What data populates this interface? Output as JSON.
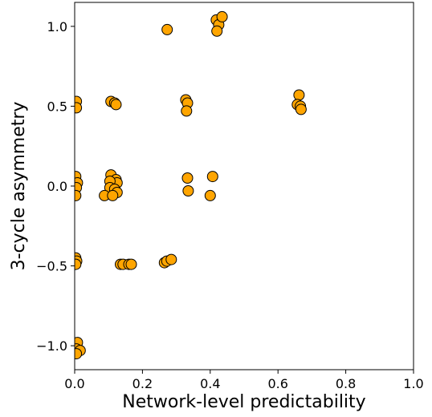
{
  "chart_data": {
    "type": "scatter",
    "title": "",
    "xlabel": "Network-level predictability",
    "ylabel": "3-cycle asymmetry",
    "xlim": [
      0.0,
      1.0
    ],
    "ylim": [
      -1.15,
      1.15
    ],
    "xticks": [
      0.0,
      0.2,
      0.4,
      0.6,
      0.8,
      1.0
    ],
    "xtick_labels": [
      "0.0",
      "0.2",
      "0.4",
      "0.6",
      "0.8",
      "1.0"
    ],
    "yticks": [
      -1.0,
      -0.5,
      0.0,
      0.5,
      1.0
    ],
    "ytick_labels": [
      "−1.0",
      "−0.5",
      "0.0",
      "0.5",
      "1.0"
    ],
    "grid": false,
    "marker_color": "#FFA500",
    "marker_edge_color": "#000000",
    "points": [
      {
        "x": 0.005,
        "y": 0.53
      },
      {
        "x": 0.005,
        "y": 0.49
      },
      {
        "x": 0.003,
        "y": 0.06
      },
      {
        "x": 0.008,
        "y": 0.02
      },
      {
        "x": 0.005,
        "y": -0.01
      },
      {
        "x": 0.003,
        "y": -0.06
      },
      {
        "x": 0.003,
        "y": -0.45
      },
      {
        "x": 0.006,
        "y": -0.47
      },
      {
        "x": 0.003,
        "y": -0.49
      },
      {
        "x": 0.008,
        "y": -0.98
      },
      {
        "x": 0.005,
        "y": -1.02
      },
      {
        "x": 0.016,
        "y": -1.03
      },
      {
        "x": 0.005,
        "y": -1.05
      },
      {
        "x": 0.107,
        "y": 0.53
      },
      {
        "x": 0.118,
        "y": 0.52
      },
      {
        "x": 0.122,
        "y": 0.51
      },
      {
        "x": 0.107,
        "y": 0.07
      },
      {
        "x": 0.122,
        "y": 0.04
      },
      {
        "x": 0.125,
        "y": 0.02
      },
      {
        "x": 0.104,
        "y": 0.03
      },
      {
        "x": 0.104,
        "y": -0.01
      },
      {
        "x": 0.118,
        "y": -0.02
      },
      {
        "x": 0.125,
        "y": -0.04
      },
      {
        "x": 0.088,
        "y": -0.06
      },
      {
        "x": 0.112,
        "y": -0.06
      },
      {
        "x": 0.135,
        "y": -0.49
      },
      {
        "x": 0.143,
        "y": -0.49
      },
      {
        "x": 0.16,
        "y": -0.49
      },
      {
        "x": 0.167,
        "y": -0.49
      },
      {
        "x": 0.265,
        "y": -0.48
      },
      {
        "x": 0.272,
        "y": -0.47
      },
      {
        "x": 0.285,
        "y": -0.46
      },
      {
        "x": 0.273,
        "y": 0.98
      },
      {
        "x": 0.328,
        "y": 0.54
      },
      {
        "x": 0.333,
        "y": 0.52
      },
      {
        "x": 0.33,
        "y": 0.47
      },
      {
        "x": 0.333,
        "y": 0.05
      },
      {
        "x": 0.335,
        "y": -0.03
      },
      {
        "x": 0.407,
        "y": 0.06
      },
      {
        "x": 0.4,
        "y": -0.06
      },
      {
        "x": 0.418,
        "y": 1.04
      },
      {
        "x": 0.425,
        "y": 1.01
      },
      {
        "x": 0.435,
        "y": 1.06
      },
      {
        "x": 0.42,
        "y": 0.97
      },
      {
        "x": 0.662,
        "y": 0.57
      },
      {
        "x": 0.657,
        "y": 0.51
      },
      {
        "x": 0.666,
        "y": 0.5
      },
      {
        "x": 0.668,
        "y": 0.48
      }
    ]
  }
}
